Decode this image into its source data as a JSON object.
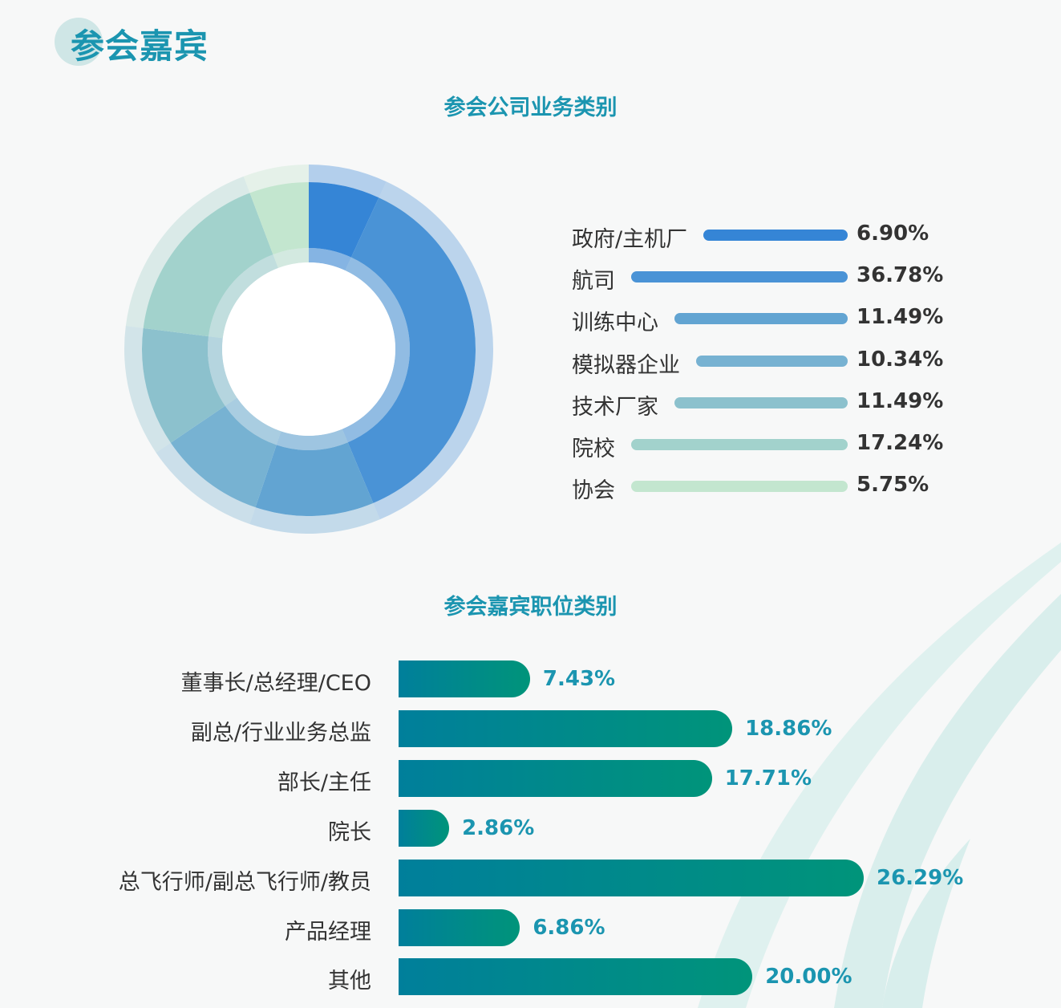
{
  "section_title": "参会嘉宾",
  "chart_data": [
    {
      "type": "pie",
      "title": "参会公司业务类别",
      "categories": [
        "政府/主机厂",
        "航司",
        "训练中心",
        "模拟器企业",
        "技术厂家",
        "院校",
        "协会"
      ],
      "values": [
        6.9,
        36.78,
        11.49,
        10.34,
        11.49,
        17.24,
        5.75
      ],
      "value_labels": [
        "6.90%",
        "36.78%",
        "11.49%",
        "10.34%",
        "11.49%",
        "17.24%",
        "5.75%"
      ],
      "colors": [
        "#3585d6",
        "#4a93d6",
        "#62a4d2",
        "#77b2d2",
        "#8cc1cd",
        "#a2d2cc",
        "#c3e6cf"
      ],
      "legend": "right"
    },
    {
      "type": "bar",
      "orientation": "horizontal",
      "title": "参会嘉宾职位类别",
      "categories": [
        "董事长/总经理/CEO",
        "副总/行业业务总监",
        "部长/主任",
        "院长",
        "总飞行师/副总飞行师/教员",
        "产品经理",
        "其他"
      ],
      "values": [
        7.43,
        18.86,
        17.71,
        2.86,
        26.29,
        6.86,
        20.0
      ],
      "value_labels": [
        "7.43%",
        "18.86%",
        "17.71%",
        "2.86%",
        "26.29%",
        "6.86%",
        "20.00%"
      ],
      "bar_gradient": [
        "#007f9b",
        "#00947a"
      ],
      "value_label_color": "#1b95b0"
    }
  ]
}
